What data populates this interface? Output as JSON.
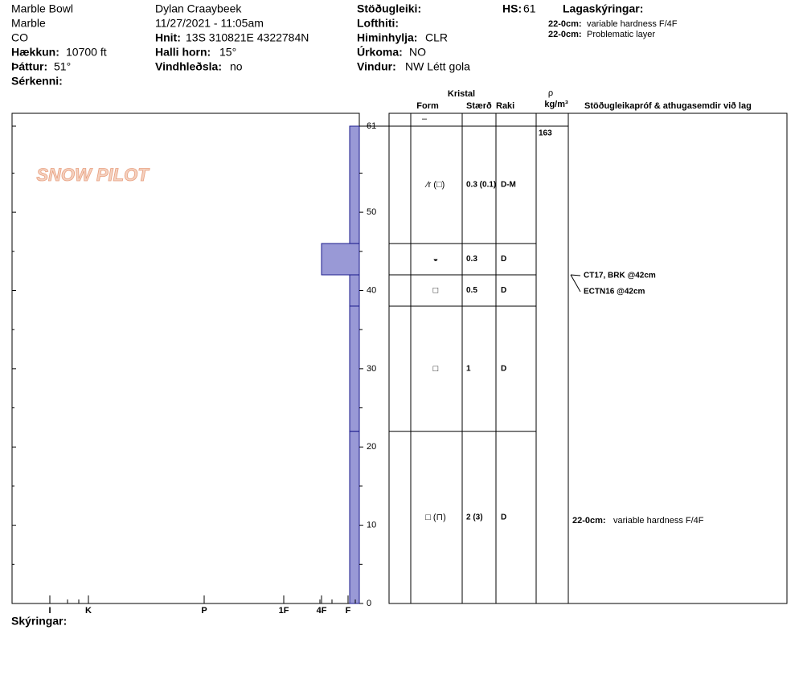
{
  "header": {
    "location": [
      "Marble Bowl",
      "Marble",
      "CO"
    ],
    "elevation": {
      "label": "Hækkun:",
      "value": "10700 ft"
    },
    "aspect": {
      "label": "Þáttur:",
      "value": "51°"
    },
    "features": {
      "label": "Sérkenni:"
    },
    "observer": "Dylan Craaybeek",
    "datetime": "11/27/2021 - 11:05am",
    "coords": {
      "label": "Hnit:",
      "value": "13S 310821E 4322784N"
    },
    "slope": {
      "label": "Halli horn:",
      "value": "15°"
    },
    "wind_loading": {
      "label": "Vindhleðsla:",
      "value": "no"
    },
    "stability": {
      "label": "Stöðugleiki:"
    },
    "air_temp": {
      "label": "Lofthiti:"
    },
    "sky": {
      "label": "Himinhylja:",
      "value": "CLR"
    },
    "precip": {
      "label": "Úrkoma:",
      "value": "NO"
    },
    "wind": {
      "label": "Vindur:",
      "value": "NW Létt gola"
    },
    "hs": {
      "label": "HS:",
      "value": 61
    },
    "legend_title": "Lagaskýringar:",
    "legend": [
      {
        "range": "22-0cm:",
        "text": "variable hardness F/4F"
      },
      {
        "range": "22-0cm:",
        "text": "Problematic layer"
      }
    ]
  },
  "logo": "SNOW PILOT",
  "columns": {
    "crystal": "Kristal",
    "form": "Form",
    "size": "Stærð",
    "moisture": "Raki",
    "rho": "ρ",
    "density_unit": "kg/m³",
    "comments": "Stöðugleikapróf & athugasemdir við lag"
  },
  "height_ticks": [
    0,
    10,
    20,
    30,
    40,
    50,
    61
  ],
  "height_minor_ticks": [
    5,
    15,
    25,
    35,
    45,
    55
  ],
  "hardness_scale": [
    "I",
    "K",
    "P",
    "1F",
    "4F",
    "F"
  ],
  "surface_form": "–",
  "layers": [
    {
      "top": 61,
      "bottom": 46,
      "hardness": "F",
      "form": "⁄r (□)",
      "size": "0.3 (0.1)",
      "moisture": "D-M",
      "density": 163
    },
    {
      "top": 46,
      "bottom": 42,
      "hardness": "4F",
      "form": "◒",
      "size": "0.3",
      "moisture": "D"
    },
    {
      "top": 42,
      "bottom": 38,
      "hardness": "F",
      "form": "□",
      "size": "0.5",
      "moisture": "D"
    },
    {
      "top": 38,
      "bottom": 22,
      "hardness": "F",
      "form": "□",
      "size": "1",
      "moisture": "D"
    },
    {
      "top": 22,
      "bottom": 0,
      "hardness": "F",
      "form": "□ (⊓)",
      "size": "2 (3)",
      "moisture": "D"
    }
  ],
  "tests": [
    {
      "depth": 42,
      "text": "CT17, BRK @42cm"
    },
    {
      "depth": 42,
      "text": "ECTN16 @42cm"
    }
  ],
  "comments": [
    {
      "top": 22,
      "bottom": 0,
      "range": "22-0cm:",
      "text": "variable hardness F/4F"
    }
  ],
  "footer": "Skýringar:"
}
